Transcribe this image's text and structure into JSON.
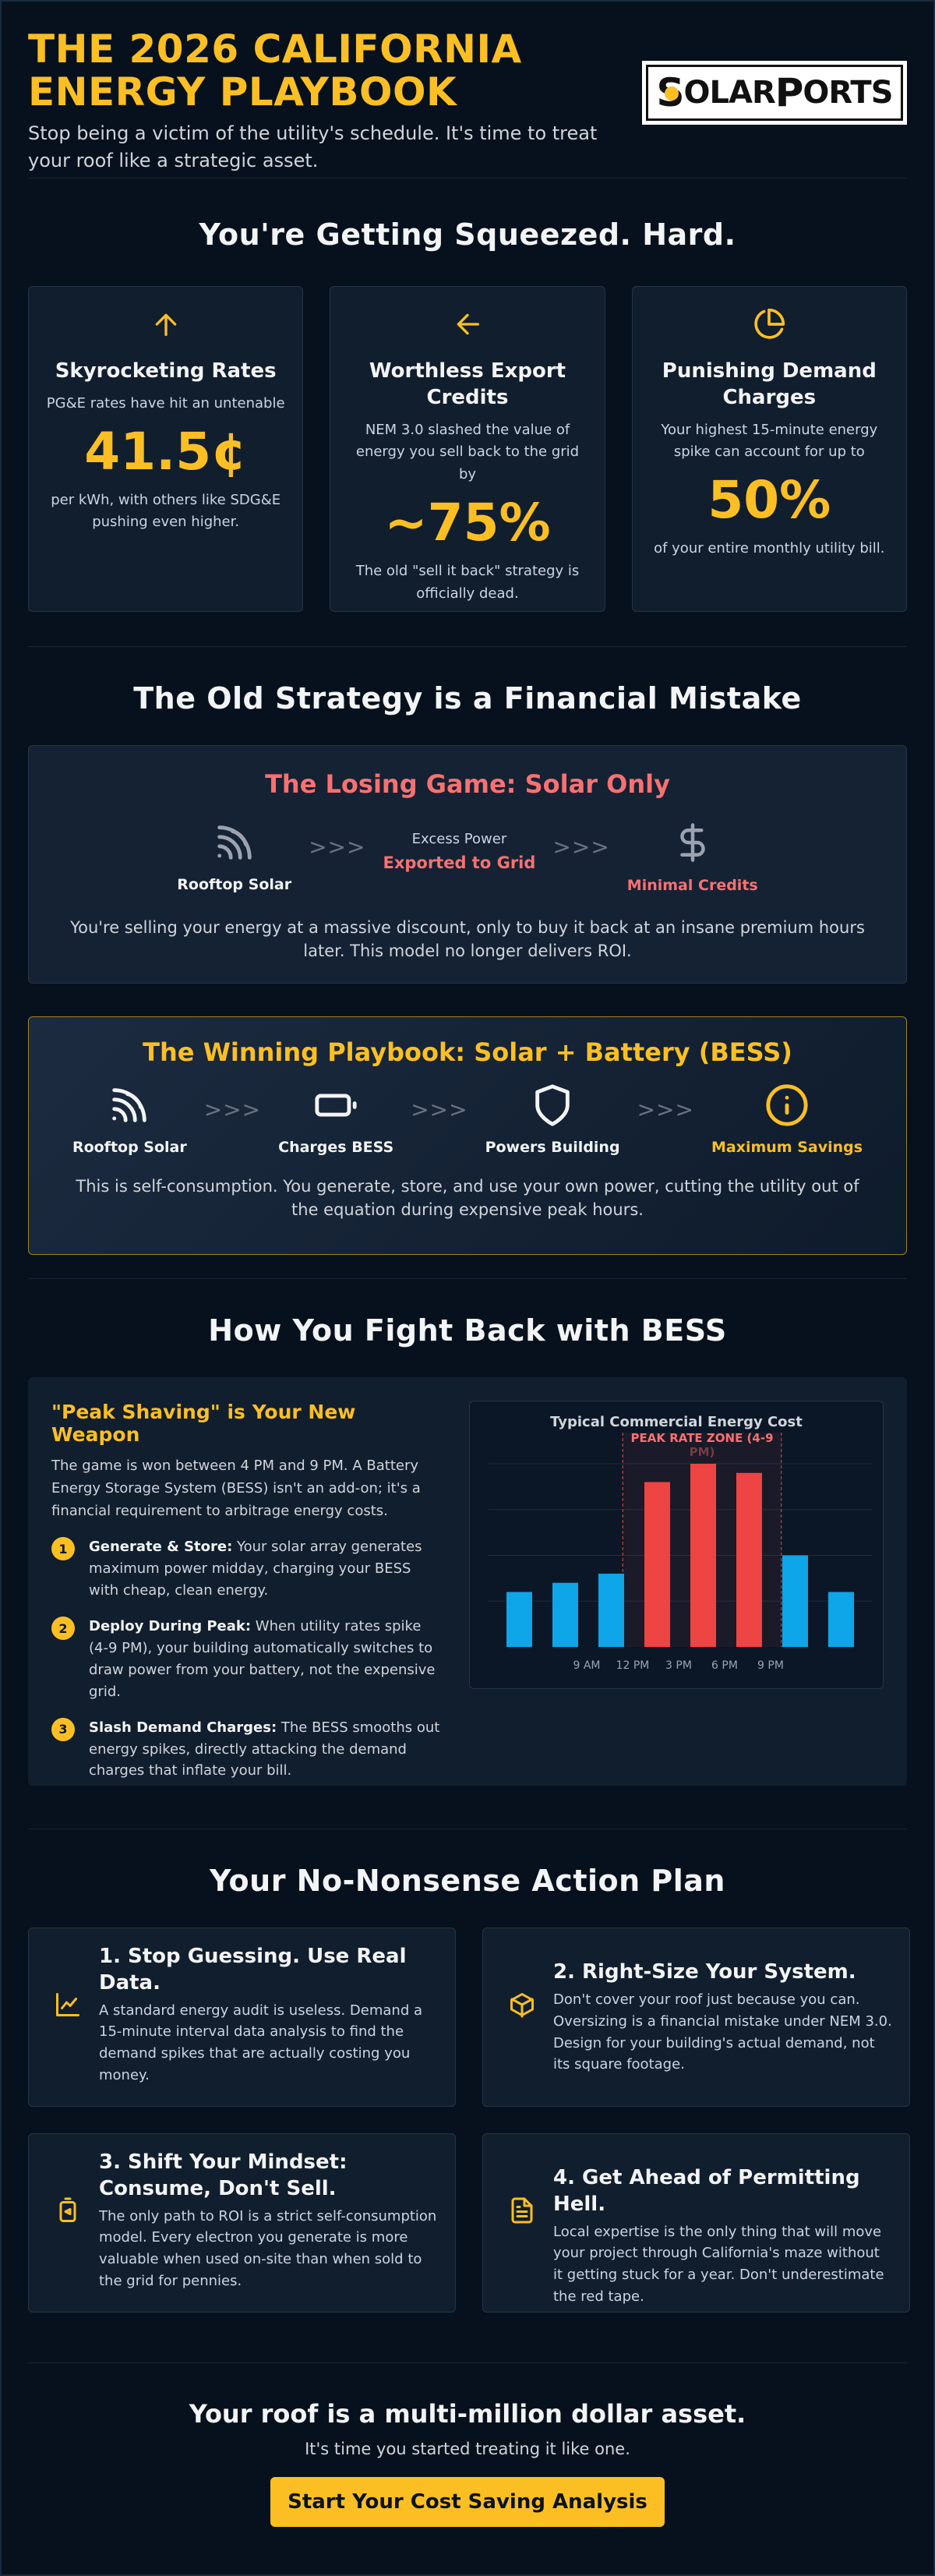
{
  "header": {
    "title_line1": "THE 2026 CALIFORNIA",
    "title_line2": "ENERGY PLAYBOOK",
    "subtitle": "Stop being a victim of the utility's schedule. It's time to treat your roof like a strategic asset.",
    "logo_text_s": "S",
    "logo_text_olar": "OLAR",
    "logo_text_p": "P",
    "logo_text_orts": "ORTS"
  },
  "squeeze": {
    "title": "You're Getting Squeezed. Hard.",
    "cards": [
      {
        "icon": "arrow-up-icon",
        "title": "Skyrocketing Rates",
        "pre": "PG&E rates have hit an untenable",
        "stat": "41.5¢",
        "post": "per kWh, with others like SDG&E pushing even higher."
      },
      {
        "icon": "arrow-left-icon",
        "title": "Worthless Export Credits",
        "pre": "NEM 3.0 slashed the value of energy you sell back to the grid by",
        "stat": "~75%",
        "post": "The old \"sell it back\" strategy is officially dead."
      },
      {
        "icon": "pie-chart-icon",
        "title": "Punishing Demand Charges",
        "pre": "Your highest 15-minute energy spike can account for up to",
        "stat": "50%",
        "post": "of your entire monthly utility bill."
      }
    ]
  },
  "old_strategy": {
    "title": "The Old Strategy is a Financial Mistake",
    "losing": {
      "title": "The Losing Game: Solar Only",
      "step1": "Rooftop Solar",
      "arrow": ">>>",
      "middle_top": "Excess Power",
      "middle_bottom": "Exported to Grid",
      "step3": "Minimal Credits",
      "text": "You're selling your energy at a massive discount, only to buy it back at an insane premium hours later. This model no longer delivers ROI."
    },
    "winning": {
      "title": "The Winning Playbook: Solar + Battery (BESS)",
      "step1": "Rooftop Solar",
      "step2": "Charges BESS",
      "step3": "Powers Building",
      "step4": "Maximum Savings",
      "arrow": ">>>",
      "text": "This is self-consumption. You generate, store, and use your own power, cutting the utility out of the equation during expensive peak hours."
    }
  },
  "bess": {
    "title": "How You Fight Back with BESS",
    "heading": "\"Peak Shaving\" is Your New Weapon",
    "intro": "The game is won between 4 PM and 9 PM. A Battery Energy Storage System (BESS) isn't an add-on; it's a financial requirement to arbitrage energy costs.",
    "items": [
      {
        "num": "1",
        "bold": "Generate & Store:",
        "text": " Your solar array generates maximum power midday, charging your BESS with cheap, clean energy."
      },
      {
        "num": "2",
        "bold": "Deploy During Peak:",
        "text": " When utility rates spike (4-9 PM), your building automatically switches to draw power from your battery, not the expensive grid."
      },
      {
        "num": "3",
        "bold": "Slash Demand Charges:",
        "text": " The BESS smooths out energy spikes, directly attacking the demand charges that inflate your bill."
      }
    ]
  },
  "chart_data": {
    "type": "bar",
    "title": "Typical Commercial Energy Cost",
    "annotation": "PEAK RATE ZONE (4-9 PM)",
    "x_tick_labels": [
      "9 AM",
      "12 PM",
      "3 PM",
      "6 PM",
      "9 PM"
    ],
    "values": [
      36,
      42,
      48,
      108,
      120,
      114,
      60,
      36
    ],
    "bar_colors": [
      "#0ea5e9",
      "#0ea5e9",
      "#0ea5e9",
      "#ef4444",
      "#ef4444",
      "#ef4444",
      "#0ea5e9",
      "#0ea5e9"
    ],
    "ylim": [
      0,
      120
    ],
    "grid": true,
    "xlabel": "",
    "ylabel": ""
  },
  "action": {
    "title": "Your No-Nonsense Action Plan",
    "cards": [
      {
        "icon": "line-chart-icon",
        "title": "1. Stop Guessing. Use Real Data.",
        "text": "A standard energy audit is useless. Demand a 15-minute interval data analysis to find the demand spikes that are actually costing you money."
      },
      {
        "icon": "cube-icon",
        "title": "2. Right-Size Your System.",
        "text": "Don't cover your roof just because you can. Oversizing is a financial mistake under NEM 3.0. Design for your building's actual demand, not its square footage."
      },
      {
        "icon": "battery-icon",
        "title": "3. Shift Your Mindset: Consume, Don't Sell.",
        "text": "The only path to ROI is a strict self-consumption model. Every electron you generate is more valuable when used on-site than when sold to the grid for pennies."
      },
      {
        "icon": "document-icon",
        "title": "4. Get Ahead of Permitting Hell.",
        "text": "Local expertise is the only thing that will move your project through California's maze without it getting stuck for a year. Don't underestimate the red tape."
      }
    ]
  },
  "cta": {
    "title": "Your roof is a multi-million dollar asset.",
    "subtitle": "It's time you started treating it like one.",
    "button": "Start Your Cost Saving Analysis"
  },
  "colors": {
    "accent": "#fbbf24",
    "danger": "#f87171",
    "background": "#07111d",
    "card": "#111e2e"
  }
}
